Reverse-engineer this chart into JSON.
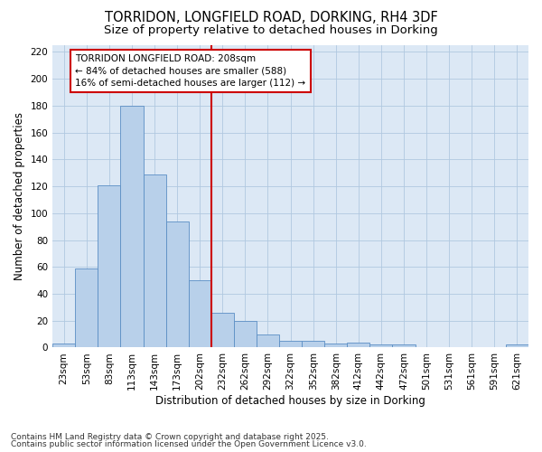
{
  "title": "TORRIDON, LONGFIELD ROAD, DORKING, RH4 3DF",
  "subtitle": "Size of property relative to detached houses in Dorking",
  "xlabel": "Distribution of detached houses by size in Dorking",
  "ylabel": "Number of detached properties",
  "footnote1": "Contains HM Land Registry data © Crown copyright and database right 2025.",
  "footnote2": "Contains public sector information licensed under the Open Government Licence v3.0.",
  "categories": [
    "23sqm",
    "53sqm",
    "83sqm",
    "113sqm",
    "143sqm",
    "173sqm",
    "202sqm",
    "232sqm",
    "262sqm",
    "292sqm",
    "322sqm",
    "352sqm",
    "382sqm",
    "412sqm",
    "442sqm",
    "472sqm",
    "501sqm",
    "531sqm",
    "561sqm",
    "591sqm",
    "621sqm"
  ],
  "values": [
    3,
    59,
    121,
    180,
    129,
    94,
    50,
    26,
    20,
    10,
    5,
    5,
    3,
    4,
    2,
    2,
    0,
    0,
    0,
    0,
    2
  ],
  "bar_color": "#b8d0ea",
  "bar_edge_color": "#5b8ec4",
  "background_color": "#dce8f5",
  "grid_color": "#b0c8e0",
  "marker_line_color": "#cc0000",
  "marker_box_color": "#cc0000",
  "annotation_line1": "TORRIDON LONGFIELD ROAD: 208sqm",
  "annotation_line2": "← 84% of detached houses are smaller (588)",
  "annotation_line3": "16% of semi-detached houses are larger (112) →",
  "ylim": [
    0,
    225
  ],
  "yticks": [
    0,
    20,
    40,
    60,
    80,
    100,
    120,
    140,
    160,
    180,
    200,
    220
  ],
  "title_fontsize": 10.5,
  "subtitle_fontsize": 9.5,
  "axis_label_fontsize": 8.5,
  "tick_fontsize": 7.5,
  "annotation_fontsize": 7.5,
  "footnote_fontsize": 6.5
}
